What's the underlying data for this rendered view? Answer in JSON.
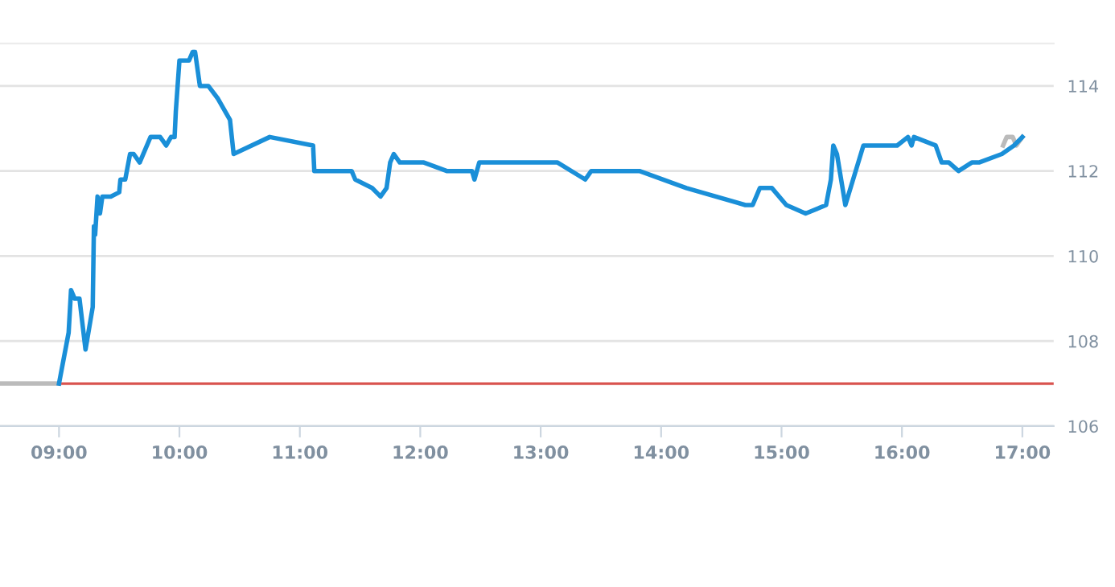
{
  "chart_data": {
    "type": "line",
    "xlim": [
      8.51,
      17.26
    ],
    "ylim": [
      106,
      115
    ],
    "xticks": [
      {
        "value": 9,
        "label": "09:00"
      },
      {
        "value": 10,
        "label": "10:00"
      },
      {
        "value": 11,
        "label": "11:00"
      },
      {
        "value": 12,
        "label": "12:00"
      },
      {
        "value": 13,
        "label": "13:00"
      },
      {
        "value": 14,
        "label": "14:00"
      },
      {
        "value": 15,
        "label": "15:00"
      },
      {
        "value": 16,
        "label": "16:00"
      },
      {
        "value": 17,
        "label": "17:00"
      }
    ],
    "yticks": [
      106,
      108,
      110,
      112,
      114
    ],
    "grid": "y",
    "marker": "none",
    "line_style": "solid",
    "ref_lines": [
      {
        "axis": "y",
        "value": 107,
        "label": null,
        "color": "#d9534f"
      }
    ],
    "series": [
      {
        "color": "#bbbbbb",
        "x": [
          8.51,
          9.0
        ],
        "values": [
          107.0,
          107.0
        ]
      },
      {
        "color": "#bbbbbb",
        "x": [
          16.84,
          16.87,
          16.92,
          16.95,
          17.0
        ],
        "values": [
          112.6,
          112.8,
          112.8,
          112.6,
          112.8
        ]
      },
      {
        "color": "#1a8fd8",
        "x": [
          9.0,
          9.08,
          9.1,
          9.13,
          9.17,
          9.22,
          9.28,
          9.29,
          9.3,
          9.32,
          9.34,
          9.36,
          9.43,
          9.5,
          9.51,
          9.55,
          9.59,
          9.62,
          9.67,
          9.76,
          9.84,
          9.89,
          9.93,
          9.96,
          9.97,
          10.0,
          10.08,
          10.11,
          10.13,
          10.17,
          10.24,
          10.32,
          10.42,
          10.45,
          10.75,
          11.11,
          11.12,
          11.43,
          11.46,
          11.6,
          11.67,
          11.72,
          11.75,
          11.78,
          11.83,
          12.03,
          12.22,
          12.43,
          12.45,
          12.49,
          13.14,
          13.37,
          13.42,
          13.82,
          14.21,
          14.7,
          14.76,
          14.82,
          14.92,
          15.04,
          15.2,
          15.37,
          15.41,
          15.43,
          15.46,
          15.53,
          15.68,
          15.96,
          16.05,
          16.08,
          16.1,
          16.28,
          16.33,
          16.39,
          16.47,
          16.58,
          16.64,
          16.83,
          16.93,
          17.0
        ],
        "values": [
          107.0,
          108.2,
          109.2,
          109.0,
          109.0,
          107.8,
          108.8,
          110.7,
          110.5,
          111.4,
          111.0,
          111.4,
          111.4,
          111.5,
          111.8,
          111.8,
          112.4,
          112.4,
          112.2,
          112.8,
          112.8,
          112.6,
          112.8,
          112.8,
          113.4,
          114.6,
          114.6,
          114.8,
          114.8,
          114.0,
          114.0,
          113.7,
          113.2,
          112.4,
          112.8,
          112.6,
          112.0,
          112.0,
          111.8,
          111.6,
          111.4,
          111.6,
          112.2,
          112.4,
          112.2,
          112.2,
          112.0,
          112.0,
          111.8,
          112.2,
          112.2,
          111.8,
          112.0,
          112.0,
          111.6,
          111.2,
          111.2,
          111.6,
          111.6,
          111.2,
          111.0,
          111.2,
          111.8,
          112.6,
          112.4,
          111.2,
          112.6,
          112.6,
          112.8,
          112.6,
          112.8,
          112.6,
          112.2,
          112.2,
          112.0,
          112.2,
          112.2,
          112.4,
          112.6,
          112.8
        ]
      }
    ]
  }
}
